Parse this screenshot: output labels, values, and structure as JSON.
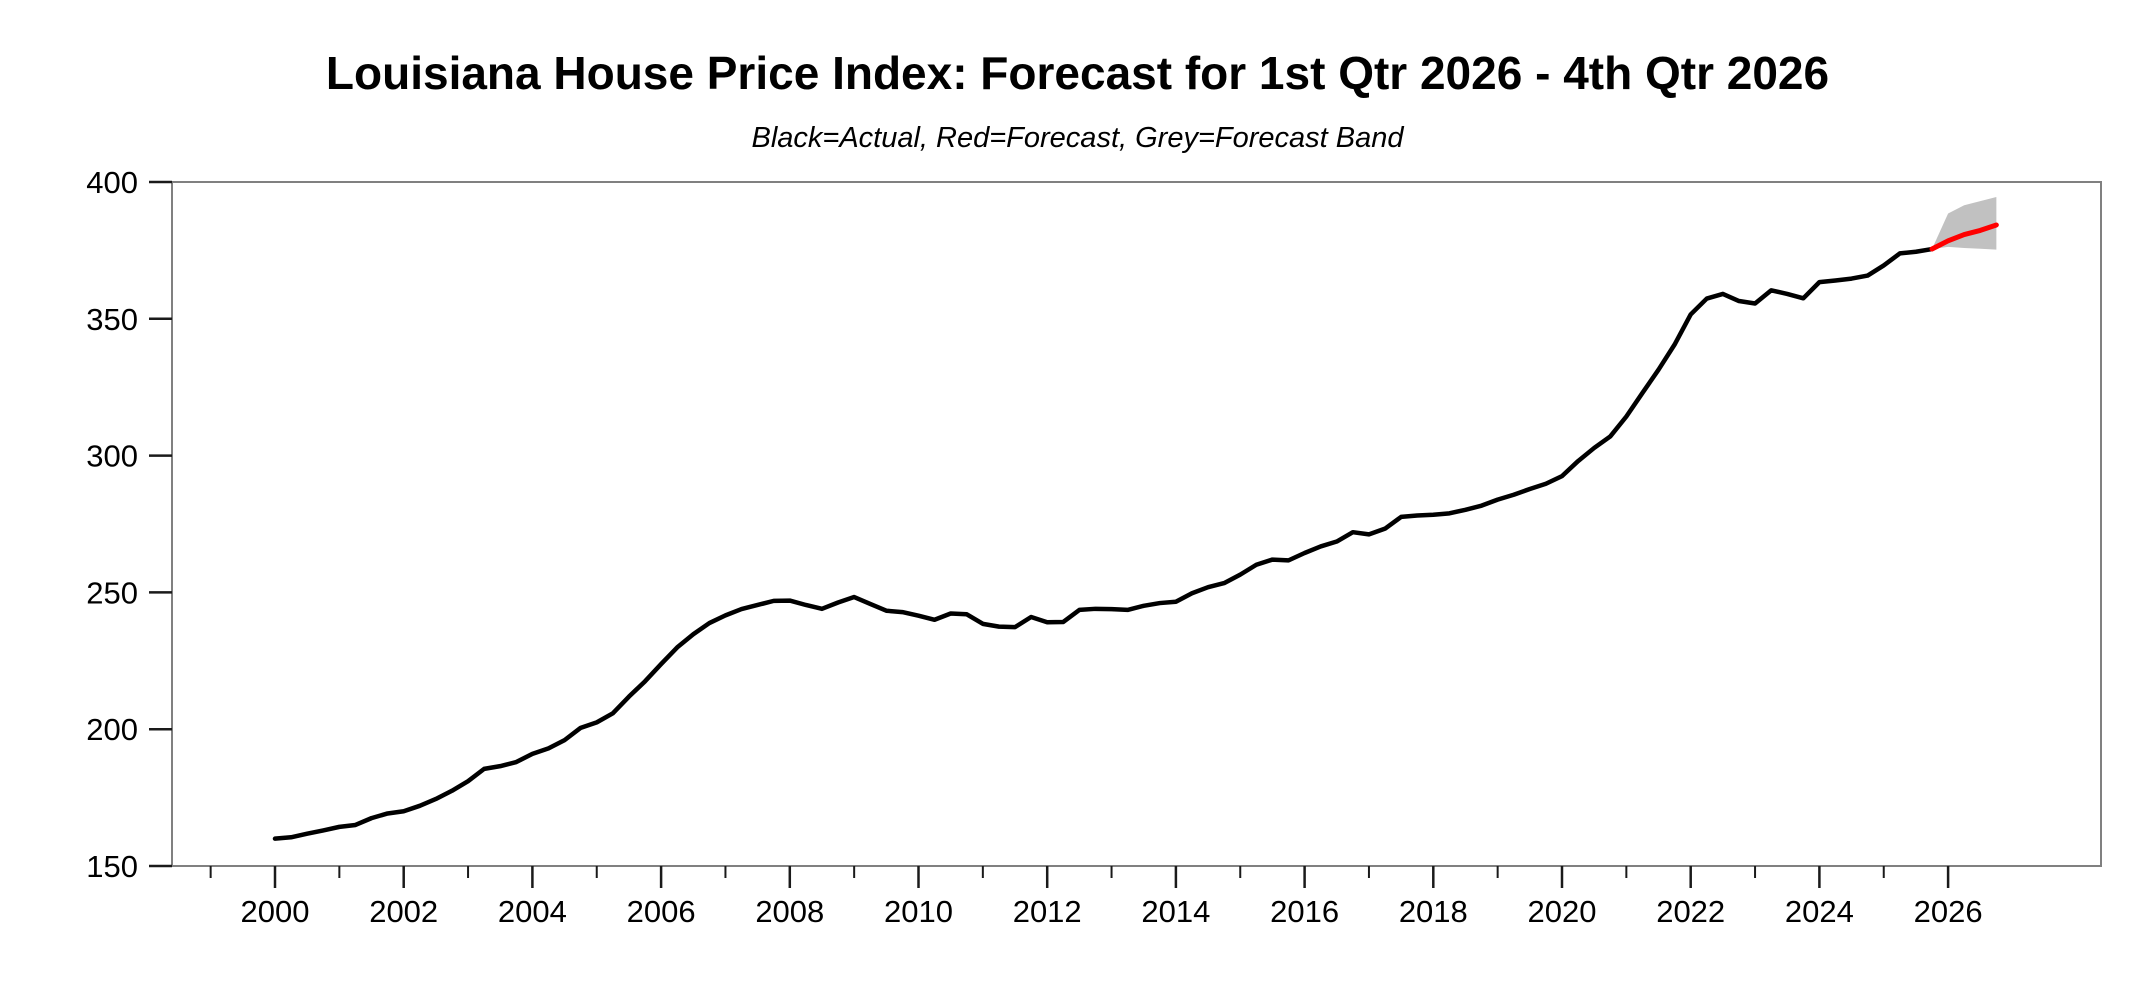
{
  "chart_data": {
    "type": "line",
    "title": "Louisiana House Price Index: Forecast for 1st Qtr 2026 - 4th Qtr 2026",
    "subtitle": "Black=Actual, Red=Forecast, Grey=Forecast Band",
    "ylabel": "",
    "xlabel": "",
    "grid": false,
    "legend_position": "none",
    "x_axis": {
      "range_years": [
        1998.4,
        2028.4
      ],
      "major_tick_years": [
        2000,
        2002,
        2004,
        2006,
        2008,
        2010,
        2012,
        2014,
        2016,
        2018,
        2020,
        2022,
        2024,
        2026
      ],
      "major_tick_labels": [
        "2000",
        "2002",
        "2004",
        "2006",
        "2008",
        "2010",
        "2012",
        "2014",
        "2016",
        "2018",
        "2020",
        "2022",
        "2024",
        "2026"
      ],
      "minor_tick_years": [
        1999,
        2001,
        2003,
        2005,
        2007,
        2009,
        2011,
        2013,
        2015,
        2017,
        2019,
        2021,
        2023,
        2025
      ]
    },
    "y_axis": {
      "range": [
        150,
        400
      ],
      "tick_values": [
        400,
        350,
        300,
        250,
        200,
        150
      ],
      "tick_labels": [
        "400",
        "350",
        "300",
        "250",
        "200",
        "150"
      ]
    },
    "series": [
      {
        "name": "Actual",
        "color": "#000000",
        "start_year": 2000.0,
        "period_years": 0.25,
        "values": [
          160.0,
          160.5,
          161.8,
          163.0,
          164.3,
          165.0,
          167.5,
          169.2,
          170.0,
          172.0,
          174.5,
          177.5,
          181.0,
          185.5,
          186.5,
          188.0,
          191.0,
          193.0,
          196.0,
          200.5,
          202.5,
          205.8,
          211.9,
          217.5,
          223.8,
          229.9,
          234.7,
          238.8,
          241.6,
          243.9,
          245.4,
          246.9,
          247.0,
          245.4,
          244.0,
          246.3,
          248.3,
          245.8,
          243.3,
          242.8,
          241.5,
          240.0,
          242.3,
          242.0,
          238.5,
          237.5,
          237.3,
          241.0,
          239.1,
          239.2,
          243.6,
          244.0,
          243.9,
          243.6,
          245.1,
          246.1,
          246.6,
          249.7,
          251.9,
          253.4,
          256.5,
          260.1,
          262.0,
          261.7,
          264.4,
          266.8,
          268.6,
          272.0,
          271.2,
          273.3,
          277.6,
          278.1,
          278.4,
          278.9,
          280.2,
          281.7,
          283.9,
          285.7,
          287.8,
          289.7,
          292.5,
          298.0,
          302.8,
          307.0,
          314.3,
          322.9,
          331.4,
          340.6,
          351.6,
          357.4,
          359.1,
          356.5,
          355.6,
          360.4,
          359.1,
          357.5,
          363.4,
          364.0,
          364.7,
          365.8,
          369.5,
          373.9,
          374.5,
          375.5
        ]
      },
      {
        "name": "Forecast",
        "color": "#ff0000",
        "start_year": 2025.75,
        "period_years": 0.25,
        "values": [
          375.5,
          378.5,
          380.8,
          382.3,
          384.3
        ]
      }
    ],
    "band": {
      "name": "Forecast Band",
      "color": "#c1c1c1",
      "start_year": 2025.75,
      "period_years": 0.25,
      "upper": [
        375.5,
        388.5,
        391.5,
        393.0,
        394.5
      ],
      "lower": [
        375.5,
        376.3,
        375.9,
        375.6,
        375.3
      ]
    },
    "colors": {
      "background": "#ffffff",
      "frame": "#808080",
      "tick": "#1a1a1a",
      "label": "#000000"
    }
  }
}
